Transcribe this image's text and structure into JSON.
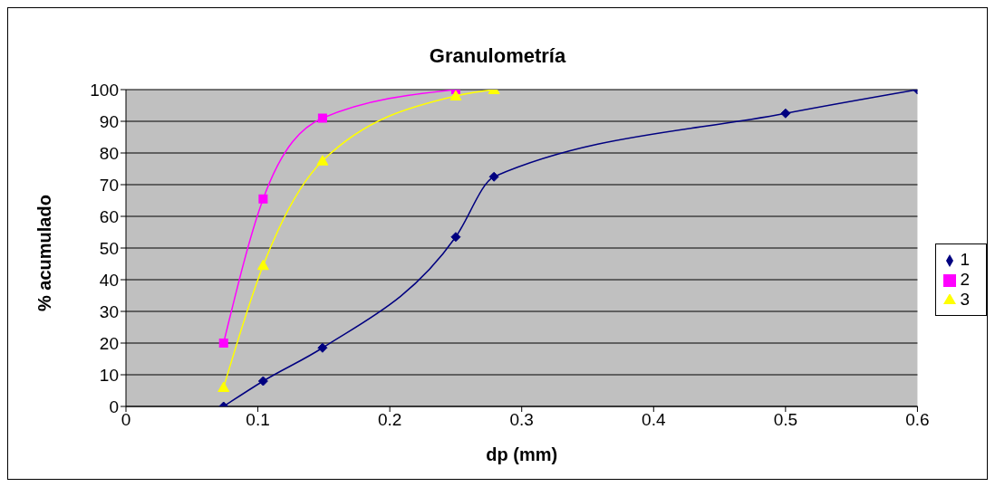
{
  "chart_data": {
    "type": "line",
    "title": "Granulometría",
    "xlabel": "dp (mm)",
    "ylabel": "% acumulado",
    "series": [
      {
        "name": "1",
        "color": "#000080",
        "marker": "diamond",
        "x": [
          0.074,
          0.104,
          0.149,
          0.25,
          0.279,
          0.5,
          0.6
        ],
        "values": [
          0,
          8,
          18.5,
          53.5,
          72.5,
          92.5,
          100
        ]
      },
      {
        "name": "2",
        "color": "#ff00ff",
        "marker": "square",
        "x": [
          0.074,
          0.104,
          0.149,
          0.25
        ],
        "values": [
          20,
          65.5,
          91,
          100
        ]
      },
      {
        "name": "3",
        "color": "#ffff00",
        "marker": "triangle",
        "x": [
          0.074,
          0.104,
          0.149,
          0.25,
          0.279
        ],
        "values": [
          6,
          44.5,
          77.5,
          98,
          100
        ]
      }
    ],
    "xlim": [
      0,
      0.6
    ],
    "xticks": [
      0,
      0.1,
      0.2,
      0.3,
      0.4,
      0.5,
      0.6
    ],
    "ylim": [
      0,
      100
    ],
    "yticks": [
      0,
      10,
      20,
      30,
      40,
      50,
      60,
      70,
      80,
      90,
      100
    ],
    "grid": "y",
    "legend": "right"
  }
}
